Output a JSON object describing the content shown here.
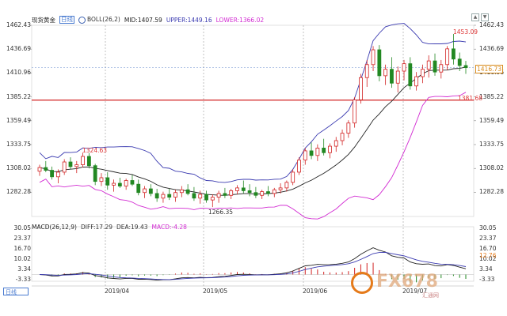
{
  "header": {
    "title": "现货黄金",
    "period": "日线",
    "boll": "BOLL(26,2)",
    "mid": "MID:1407.59",
    "upper": "UPPER:1449.16",
    "lower": "LOWER:1366.02"
  },
  "macd_header": {
    "params": "MACD(26,12,9)",
    "diff": "DIFF:17.29",
    "dea": "DEA:19.43",
    "macd": "MACD:-4.28"
  },
  "left_axis": [
    "1462.43",
    "1436.69",
    "1410.96",
    "1385.22",
    "1359.49",
    "1333.75",
    "1308.02",
    "1282.28"
  ],
  "right_axis": [
    "1462.43",
    "1436.69",
    "1410.96",
    "1385.22",
    "1359.49",
    "1333.75",
    "1308.02",
    "1282.28"
  ],
  "macd_axis_left": [
    "30.05",
    "23.37",
    "16.70",
    "10.02",
    "3.34",
    "-3.33"
  ],
  "macd_axis_right": [
    "30.05",
    "23.37",
    "16.70",
    "10.02",
    "3.34",
    "-3.33"
  ],
  "x_ticks": [
    "2019/04",
    "2019/05",
    "2019/06",
    "2019/07"
  ],
  "day_button": "日线",
  "labels": {
    "high_early": "1324.63",
    "low": "1266.35",
    "high_recent": "1453.09",
    "ref_line": "1381.68",
    "last_price": "1416.73",
    "macd_last": "12.76"
  },
  "watermark": {
    "text": "FX678",
    "sub": "汇通网"
  },
  "colors": {
    "up": "#d22222",
    "down": "#228822",
    "mid": "#222222",
    "upper": "#3a3ab0",
    "lower": "#d22bd2",
    "ref": "#d22222",
    "last": "#d88a1a"
  },
  "chart_data": {
    "type": "candlestick",
    "instrument": "现货黄金",
    "candles": [
      [
        1305,
        1312,
        1300,
        1309
      ],
      [
        1309,
        1316,
        1304,
        1306
      ],
      [
        1306,
        1310,
        1296,
        1299
      ],
      [
        1299,
        1307,
        1292,
        1304
      ],
      [
        1304,
        1318,
        1301,
        1315
      ],
      [
        1315,
        1320,
        1307,
        1310
      ],
      [
        1310,
        1316,
        1303,
        1312
      ],
      [
        1312,
        1325,
        1309,
        1321
      ],
      [
        1321,
        1324.63,
        1308,
        1311
      ],
      [
        1311,
        1313,
        1290,
        1294
      ],
      [
        1294,
        1303,
        1289,
        1298
      ],
      [
        1298,
        1304,
        1285,
        1290
      ],
      [
        1290,
        1296,
        1283,
        1292
      ],
      [
        1292,
        1298,
        1287,
        1289
      ],
      [
        1289,
        1297,
        1285,
        1295
      ],
      [
        1295,
        1301,
        1289,
        1291
      ],
      [
        1291,
        1296,
        1279,
        1282
      ],
      [
        1282,
        1289,
        1276,
        1286
      ],
      [
        1286,
        1291,
        1278,
        1281
      ],
      [
        1281,
        1286,
        1272,
        1276
      ],
      [
        1276,
        1283,
        1271,
        1280
      ],
      [
        1280,
        1286,
        1274,
        1277
      ],
      [
        1277,
        1285,
        1272,
        1282
      ],
      [
        1282,
        1289,
        1277,
        1285
      ],
      [
        1285,
        1291,
        1279,
        1281
      ],
      [
        1281,
        1288,
        1273,
        1276
      ],
      [
        1276,
        1284,
        1270,
        1280
      ],
      [
        1280,
        1284,
        1271,
        1274
      ],
      [
        1274,
        1280,
        1266.35,
        1277
      ],
      [
        1277,
        1284,
        1271,
        1281
      ],
      [
        1281,
        1287,
        1276,
        1279
      ],
      [
        1279,
        1286,
        1275,
        1284
      ],
      [
        1284,
        1290,
        1280,
        1287
      ],
      [
        1287,
        1295,
        1281,
        1284
      ],
      [
        1284,
        1291,
        1278,
        1282
      ],
      [
        1282,
        1288,
        1276,
        1279
      ],
      [
        1279,
        1285,
        1275,
        1283
      ],
      [
        1283,
        1289,
        1278,
        1281
      ],
      [
        1281,
        1287,
        1277,
        1285
      ],
      [
        1285,
        1292,
        1281,
        1287
      ],
      [
        1287,
        1295,
        1283,
        1293
      ],
      [
        1293,
        1307,
        1290,
        1304
      ],
      [
        1304,
        1320,
        1301,
        1317
      ],
      [
        1317,
        1330,
        1312,
        1327
      ],
      [
        1327,
        1336,
        1318,
        1322
      ],
      [
        1322,
        1334,
        1316,
        1330
      ],
      [
        1330,
        1340,
        1322,
        1325
      ],
      [
        1325,
        1335,
        1319,
        1332
      ],
      [
        1332,
        1342,
        1326,
        1338
      ],
      [
        1338,
        1350,
        1333,
        1346
      ],
      [
        1346,
        1360,
        1341,
        1357
      ],
      [
        1357,
        1385,
        1352,
        1382
      ],
      [
        1382,
        1410,
        1378,
        1406
      ],
      [
        1406,
        1425,
        1396,
        1420
      ],
      [
        1420,
        1440,
        1413,
        1436
      ],
      [
        1436,
        1441,
        1402,
        1408
      ],
      [
        1408,
        1420,
        1398,
        1415
      ],
      [
        1415,
        1428,
        1395,
        1400
      ],
      [
        1400,
        1418,
        1390,
        1413
      ],
      [
        1413,
        1425,
        1403,
        1421
      ],
      [
        1421,
        1428,
        1393,
        1397
      ],
      [
        1397,
        1412,
        1392,
        1407
      ],
      [
        1407,
        1420,
        1400,
        1415
      ],
      [
        1415,
        1430,
        1406,
        1424
      ],
      [
        1424,
        1432,
        1408,
        1412
      ],
      [
        1412,
        1425,
        1405,
        1420
      ],
      [
        1420,
        1440,
        1414,
        1437
      ],
      [
        1437,
        1453.09,
        1420,
        1426
      ],
      [
        1426,
        1433,
        1413,
        1419
      ],
      [
        1419,
        1424,
        1410,
        1416.73
      ]
    ],
    "mid_band_range": [
      1407.59
    ],
    "upper_band_last": 1449.16,
    "lower_band_last": 1366.02,
    "reference_line": 1381.68,
    "ylim": [
      1270,
      1465
    ],
    "macd": {
      "diff": 17.29,
      "dea": 19.43,
      "macd": -4.28,
      "ylim": [
        -3.33,
        30.05
      ]
    }
  }
}
